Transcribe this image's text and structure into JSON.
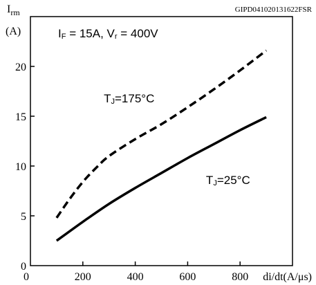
{
  "figure_code": "GIPD041020131622FSR",
  "chart_data": {
    "type": "line",
    "condition": {
      "if_symbol": "I",
      "if_sub": "F",
      "if_value": " = 15A, ",
      "vr_symbol": "V",
      "vr_sub": "r",
      "vr_value": " = 400V"
    },
    "y_axis": {
      "label_main": "I",
      "label_sub": "rm",
      "unit": "(A)",
      "range": [
        0,
        25
      ],
      "ticks": [
        {
          "value": 0,
          "label": "0"
        },
        {
          "value": 5,
          "label": "5"
        },
        {
          "value": 10,
          "label": "10"
        },
        {
          "value": 15,
          "label": "15"
        },
        {
          "value": 20,
          "label": "20"
        }
      ]
    },
    "x_axis": {
      "label": "di/dt(A/μs)",
      "range": [
        0,
        1000
      ],
      "ticks": [
        {
          "value": 200,
          "label": "200"
        },
        {
          "value": 400,
          "label": "400"
        },
        {
          "value": 600,
          "label": "600"
        },
        {
          "value": 800,
          "label": "800"
        }
      ]
    },
    "grid": false,
    "series": [
      {
        "name_main": "T",
        "name_sub": "J",
        "name_rest": "=175°C",
        "style": "dashed",
        "label_at": {
          "x": 280,
          "y": 16.4
        },
        "x": [
          100,
          150,
          200,
          250,
          300,
          400,
          500,
          600,
          700,
          800,
          900
        ],
        "y": [
          4.8,
          6.7,
          8.4,
          9.8,
          11.0,
          12.7,
          14.2,
          15.9,
          17.7,
          19.6,
          21.6
        ]
      },
      {
        "name_main": "T",
        "name_sub": "J",
        "name_rest": "=25°C",
        "style": "solid",
        "label_at": {
          "x": 670,
          "y": 8.2
        },
        "x": [
          100,
          200,
          300,
          400,
          500,
          600,
          700,
          800,
          900
        ],
        "y": [
          2.5,
          4.4,
          6.2,
          7.8,
          9.3,
          10.8,
          12.2,
          13.6,
          14.9
        ]
      }
    ]
  }
}
